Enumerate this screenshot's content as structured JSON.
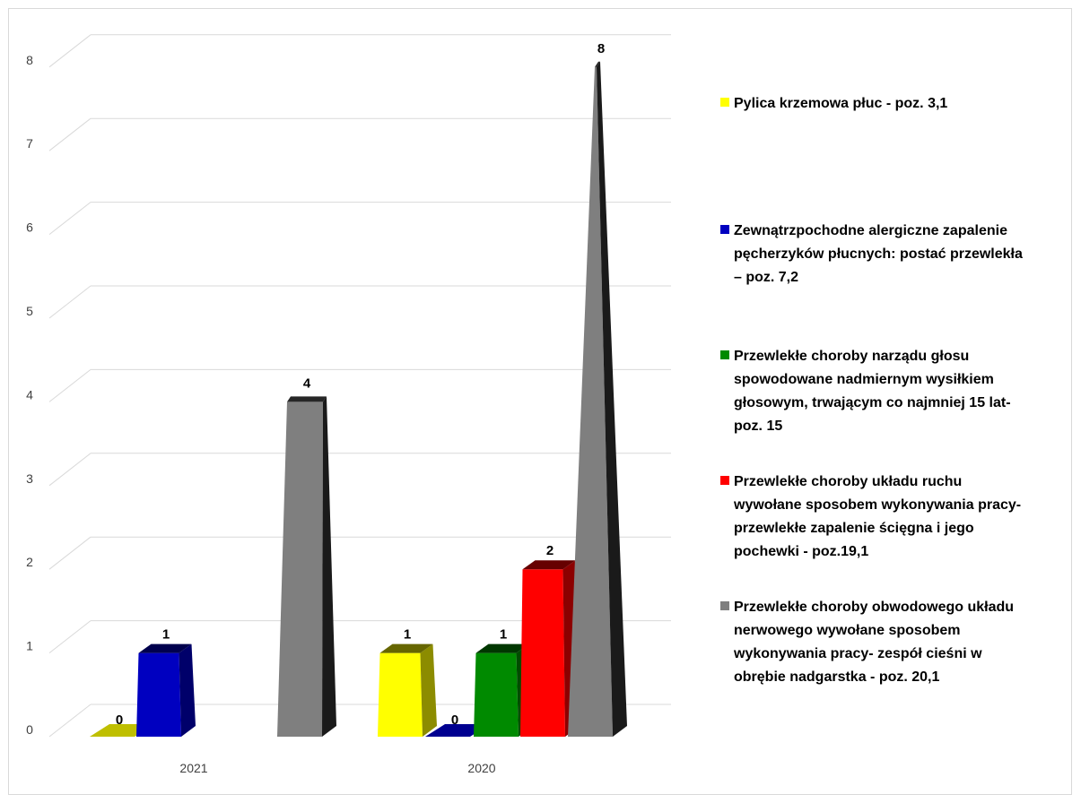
{
  "chart_data": {
    "type": "bar",
    "categories": [
      "2021",
      "2020"
    ],
    "series": [
      {
        "name": "Pylica krzemowa płuc - poz. 3,1",
        "color": "#ffff00",
        "values": [
          0,
          1
        ]
      },
      {
        "name": "Zewnątrzpochodne alergiczne zapalenie pęcherzyków płucnych: postać przewlekła – poz. 7,2",
        "color": "#0000c0",
        "values": [
          1,
          0
        ]
      },
      {
        "name": "Przewlekłe choroby narządu głosu spowodowane nadmiernym wysiłkiem głosowym, trwającym co najmniej 15 lat- poz. 15",
        "color": "#008a00",
        "values": [
          null,
          1
        ]
      },
      {
        "name": "Przewlekłe choroby układu ruchu wywołane sposobem wykonywania pracy- przewlekłe zapalenie ścięgna i jego pochewki - poz.19,1",
        "color": "#ff0000",
        "values": [
          null,
          2
        ]
      },
      {
        "name": "Przewlekłe choroby obwodowego układu nerwowego wywołane sposobem wykonywania pracy- zespół cieśni w obrębie nadgarstka - poz. 20,1",
        "color": "#7f7f7f",
        "values": [
          4,
          8
        ]
      }
    ],
    "legend_lines": [
      [
        "Pylica krzemowa płuc - poz. 3,1"
      ],
      [
        "Zewnątrzpochodne alergiczne zapalenie",
        "pęcherzyków płucnych: postać przewlekła",
        "– poz. 7,2"
      ],
      [
        "Przewlekłe choroby narządu głosu",
        "spowodowane nadmiernym wysiłkiem",
        "głosowym, trwającym co najmniej 15 lat-",
        "poz. 15"
      ],
      [
        "Przewlekłe choroby układu ruchu",
        "wywołane sposobem wykonywania pracy-",
        "przewlekłe zapalenie ścięgna i jego",
        "pochewki - poz.19,1"
      ],
      [
        "Przewlekłe choroby obwodowego układu",
        "nerwowego wywołane sposobem",
        "wykonywania pracy- zespół cieśni w",
        "obrębie nadgarstka - poz. 20,1"
      ]
    ],
    "yticks": [
      0,
      1,
      2,
      3,
      4,
      5,
      6,
      7,
      8
    ],
    "ylim": [
      0,
      8
    ],
    "grid": true,
    "legend_position": "right",
    "title": "",
    "xlabel": "",
    "ylabel": ""
  }
}
